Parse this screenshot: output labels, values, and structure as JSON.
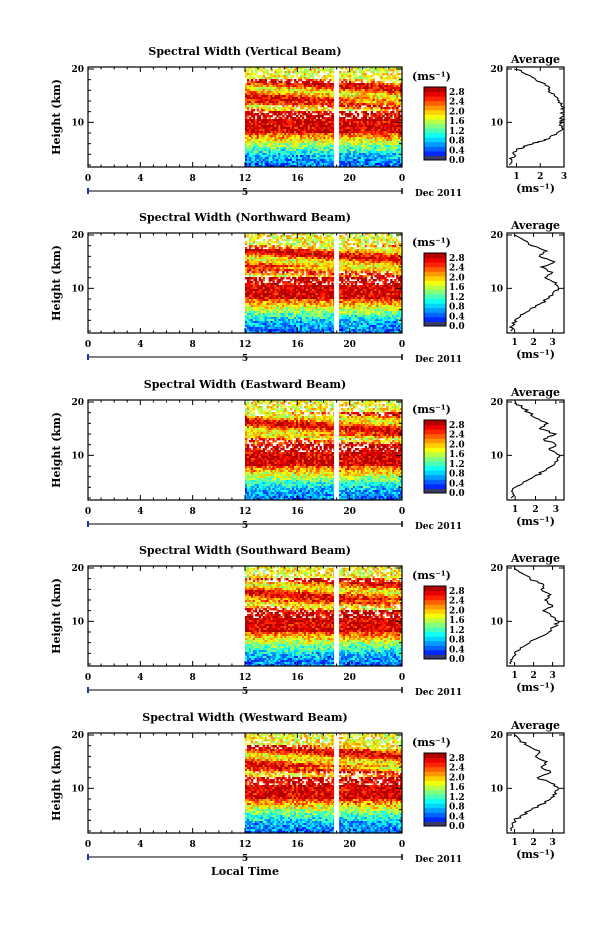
{
  "chart_data": [
    {
      "type": "heatmap",
      "title": "Spectral Width (Vertical Beam)",
      "xlabel": "",
      "ylabel": "Height (km)",
      "x_ticks": [
        "0",
        "4",
        "8",
        "12",
        "16",
        "20",
        "0"
      ],
      "y_ticks": [
        "10",
        "20"
      ],
      "date_label": "5",
      "date_suffix": "Dec 2011",
      "colorbar": {
        "unit": "(ms⁻¹)",
        "ticks": [
          "2.8",
          "2.4",
          "2.0",
          "1.6",
          "1.2",
          "0.8",
          "0.4",
          "0.0"
        ],
        "range": [
          0,
          3.0
        ]
      },
      "data_start_hour": 12,
      "gap_hour": 19,
      "average": {
        "title": "Average",
        "xlabel": "(ms⁻¹)",
        "x_ticks": [
          "1",
          "2",
          "3"
        ],
        "xlim": [
          0.6,
          3.0
        ],
        "y_ticks": [
          "10",
          "20"
        ],
        "profile": [
          [
            0.7,
            2
          ],
          [
            0.8,
            3
          ],
          [
            0.9,
            4
          ],
          [
            1.0,
            4.8
          ],
          [
            1.3,
            5.5
          ],
          [
            1.7,
            6
          ],
          [
            2.1,
            6.5
          ],
          [
            2.4,
            7
          ],
          [
            2.7,
            8
          ],
          [
            2.9,
            9
          ],
          [
            2.95,
            10
          ],
          [
            2.9,
            11
          ],
          [
            3.0,
            12
          ],
          [
            2.9,
            13
          ],
          [
            2.8,
            14
          ],
          [
            2.6,
            15
          ],
          [
            2.4,
            16
          ],
          [
            2.2,
            17
          ],
          [
            1.8,
            18
          ],
          [
            1.4,
            19
          ],
          [
            1.2,
            19.6
          ],
          [
            0.9,
            20
          ]
        ]
      }
    },
    {
      "type": "heatmap",
      "title": "Spectral Width (Northward Beam)",
      "xlabel": "",
      "ylabel": "Height (km)",
      "x_ticks": [
        "0",
        "4",
        "8",
        "12",
        "16",
        "20",
        "0"
      ],
      "y_ticks": [
        "10",
        "20"
      ],
      "date_label": "5",
      "date_suffix": "Dec 2011",
      "colorbar": {
        "unit": "(ms⁻¹)",
        "ticks": [
          "2.8",
          "2.4",
          "2.0",
          "1.6",
          "1.2",
          "0.8",
          "0.4",
          "0.0"
        ],
        "range": [
          0,
          3.0
        ]
      },
      "data_start_hour": 12,
      "gap_hour": 19,
      "average": {
        "title": "Average",
        "xlabel": "(ms⁻¹)",
        "x_ticks": [
          "1",
          "2",
          "3"
        ],
        "xlim": [
          0.6,
          3.6
        ],
        "y_ticks": [
          "10",
          "20"
        ],
        "profile": [
          [
            0.8,
            2
          ],
          [
            0.9,
            3
          ],
          [
            1.0,
            4
          ],
          [
            1.3,
            5
          ],
          [
            1.8,
            6
          ],
          [
            2.3,
            7
          ],
          [
            2.7,
            8
          ],
          [
            3.0,
            9
          ],
          [
            3.3,
            10
          ],
          [
            3.2,
            11
          ],
          [
            2.6,
            12
          ],
          [
            3.0,
            13
          ],
          [
            2.4,
            14
          ],
          [
            3.1,
            15
          ],
          [
            2.3,
            16
          ],
          [
            2.7,
            17
          ],
          [
            1.9,
            18
          ],
          [
            1.5,
            19
          ],
          [
            1.0,
            20
          ]
        ]
      }
    },
    {
      "type": "heatmap",
      "title": "Spectral Width (Eastward Beam)",
      "xlabel": "",
      "ylabel": "Height (km)",
      "x_ticks": [
        "0",
        "4",
        "8",
        "12",
        "16",
        "20",
        "0"
      ],
      "y_ticks": [
        "10",
        "20"
      ],
      "date_label": "5",
      "date_suffix": "Dec 2011",
      "colorbar": {
        "unit": "(ms⁻¹)",
        "ticks": [
          "2.8",
          "2.4",
          "2.0",
          "1.6",
          "1.2",
          "0.8",
          "0.4",
          "0.0"
        ],
        "range": [
          0,
          3.0
        ]
      },
      "data_start_hour": 12,
      "gap_hour": 19,
      "average": {
        "title": "Average",
        "xlabel": "(ms⁻¹)",
        "x_ticks": [
          "1",
          "2",
          "3"
        ],
        "xlim": [
          0.6,
          3.4
        ],
        "y_ticks": [
          "10",
          "20"
        ],
        "profile": [
          [
            0.8,
            2
          ],
          [
            0.9,
            3
          ],
          [
            1.0,
            4
          ],
          [
            1.4,
            5
          ],
          [
            1.9,
            6
          ],
          [
            2.4,
            7
          ],
          [
            2.8,
            8
          ],
          [
            3.1,
            9
          ],
          [
            3.2,
            10
          ],
          [
            2.7,
            11
          ],
          [
            3.0,
            12
          ],
          [
            2.4,
            13
          ],
          [
            3.0,
            14
          ],
          [
            2.2,
            15
          ],
          [
            2.6,
            16
          ],
          [
            2.0,
            17
          ],
          [
            1.7,
            18
          ],
          [
            1.3,
            19
          ],
          [
            1.0,
            20
          ]
        ]
      }
    },
    {
      "type": "heatmap",
      "title": "Spectral Width (Southward Beam)",
      "xlabel": "",
      "ylabel": "Height (km)",
      "x_ticks": [
        "0",
        "4",
        "8",
        "12",
        "16",
        "20",
        "0"
      ],
      "y_ticks": [
        "10",
        "20"
      ],
      "date_label": "5",
      "date_suffix": "Dec 2011",
      "colorbar": {
        "unit": "(ms⁻¹)",
        "ticks": [
          "2.8",
          "2.4",
          "2.0",
          "1.6",
          "1.2",
          "0.8",
          "0.4",
          "0.0"
        ],
        "range": [
          0,
          3.0
        ]
      },
      "data_start_hour": 12,
      "gap_hour": 19,
      "average": {
        "title": "Average",
        "xlabel": "(ms⁻¹)",
        "x_ticks": [
          "1",
          "2",
          "3"
        ],
        "xlim": [
          0.6,
          3.6
        ],
        "y_ticks": [
          "10",
          "20"
        ],
        "profile": [
          [
            0.8,
            2
          ],
          [
            0.9,
            3
          ],
          [
            1.0,
            4
          ],
          [
            1.3,
            5
          ],
          [
            1.8,
            6
          ],
          [
            2.3,
            7
          ],
          [
            2.8,
            8
          ],
          [
            3.1,
            9
          ],
          [
            3.3,
            10
          ],
          [
            2.9,
            11
          ],
          [
            2.5,
            12
          ],
          [
            3.0,
            13
          ],
          [
            2.6,
            14
          ],
          [
            2.9,
            15
          ],
          [
            2.4,
            16
          ],
          [
            2.5,
            17
          ],
          [
            1.8,
            18
          ],
          [
            1.4,
            19
          ],
          [
            1.0,
            20
          ]
        ]
      }
    },
    {
      "type": "heatmap",
      "title": "Spectral Width (Westward Beam)",
      "xlabel": "Local Time",
      "ylabel": "Height (km)",
      "x_ticks": [
        "0",
        "4",
        "8",
        "12",
        "16",
        "20",
        "0"
      ],
      "y_ticks": [
        "10",
        "20"
      ],
      "date_label": "5",
      "date_suffix": "Dec 2011",
      "colorbar": {
        "unit": "(ms⁻¹)",
        "ticks": [
          "2.8",
          "2.4",
          "2.0",
          "1.6",
          "1.2",
          "0.8",
          "0.4",
          "0.0"
        ],
        "range": [
          0,
          3.0
        ]
      },
      "data_start_hour": 12,
      "gap_hour": 19,
      "average": {
        "title": "Average",
        "xlabel": "(ms⁻¹)",
        "x_ticks": [
          "1",
          "2",
          "3"
        ],
        "xlim": [
          0.6,
          3.6
        ],
        "y_ticks": [
          "10",
          "20"
        ],
        "profile": [
          [
            0.8,
            2
          ],
          [
            0.9,
            3
          ],
          [
            1.0,
            4
          ],
          [
            1.4,
            5
          ],
          [
            1.9,
            6
          ],
          [
            2.4,
            7
          ],
          [
            2.9,
            8
          ],
          [
            3.2,
            9
          ],
          [
            3.3,
            10
          ],
          [
            2.9,
            11
          ],
          [
            2.2,
            12
          ],
          [
            2.9,
            13
          ],
          [
            2.4,
            14
          ],
          [
            2.7,
            15
          ],
          [
            2.1,
            16
          ],
          [
            2.3,
            17
          ],
          [
            1.7,
            18
          ],
          [
            1.3,
            19
          ],
          [
            1.0,
            20
          ]
        ]
      }
    }
  ]
}
